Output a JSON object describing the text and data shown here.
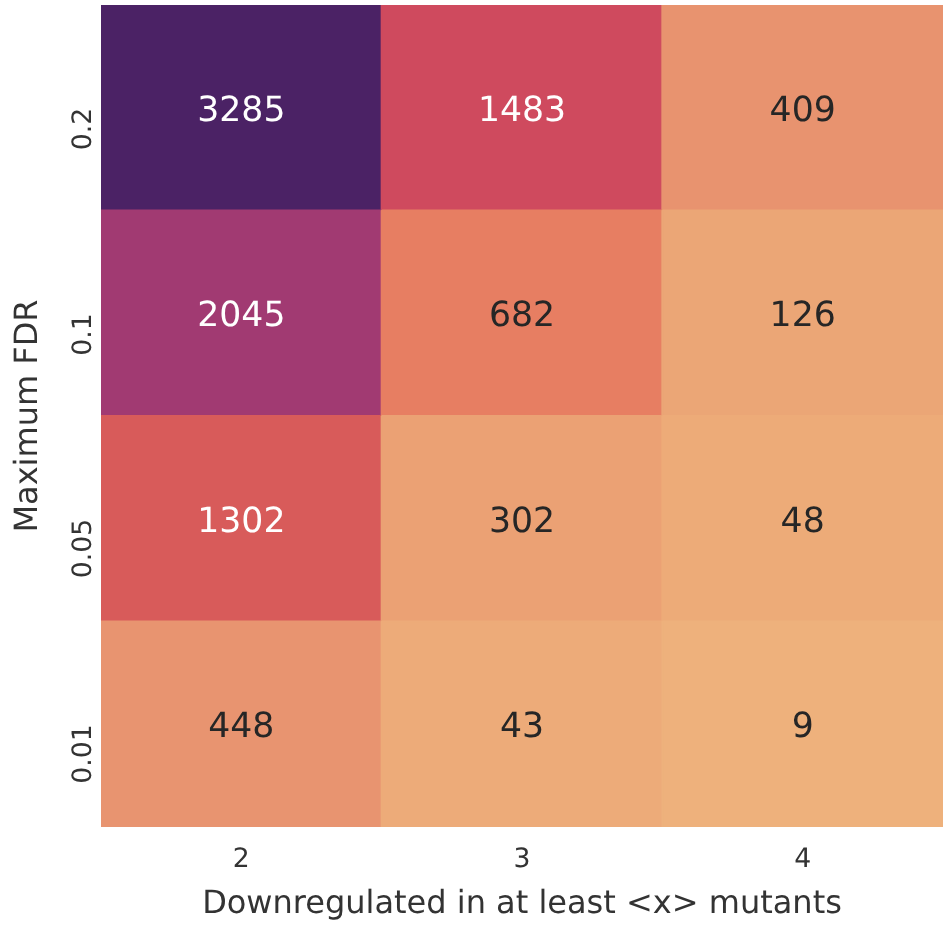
{
  "chart_data": {
    "type": "heatmap",
    "xlabel": "Downregulated in at least <x> mutants",
    "ylabel": "Maximum FDR",
    "categories": [
      "2",
      "3",
      "4"
    ],
    "y_categories": [
      "0.2",
      "0.1",
      "0.05",
      "0.01"
    ],
    "cells": [
      [
        3285,
        1483,
        409
      ],
      [
        2045,
        682,
        126
      ],
      [
        1302,
        302,
        48
      ],
      [
        448,
        43,
        9
      ]
    ],
    "colors": [
      "#4b2265",
      "#cf4a5e",
      "#e8936f",
      "#a13a72",
      "#e77e62",
      "#eba676",
      "#d85b5a",
      "#eba174",
      "#edab78",
      "#e89470",
      "#edab79",
      "#eeb17c"
    ],
    "data_labels": true
  }
}
